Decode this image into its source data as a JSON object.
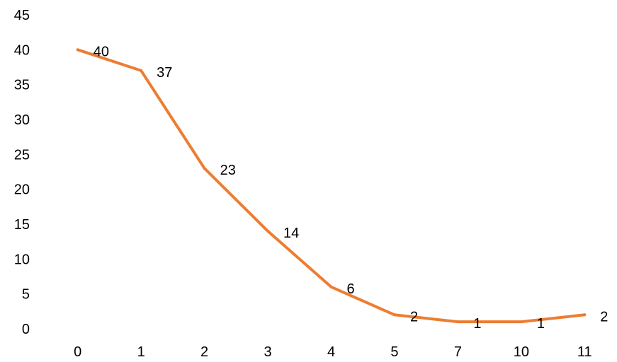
{
  "chart_data": {
    "type": "line",
    "title": "",
    "xlabel": "",
    "ylabel": "",
    "categories": [
      "0",
      "1",
      "2",
      "3",
      "4",
      "5",
      "7",
      "10",
      "11"
    ],
    "series": [
      {
        "values": [
          40,
          37,
          23,
          14,
          6,
          2,
          1,
          1,
          2
        ],
        "color": "#ED7D31"
      }
    ],
    "ylim": [
      0,
      45
    ],
    "yticks": [
      0,
      5,
      10,
      15,
      20,
      25,
      30,
      35,
      40,
      45
    ],
    "grid": false,
    "legend": "none",
    "data_labels": true
  }
}
